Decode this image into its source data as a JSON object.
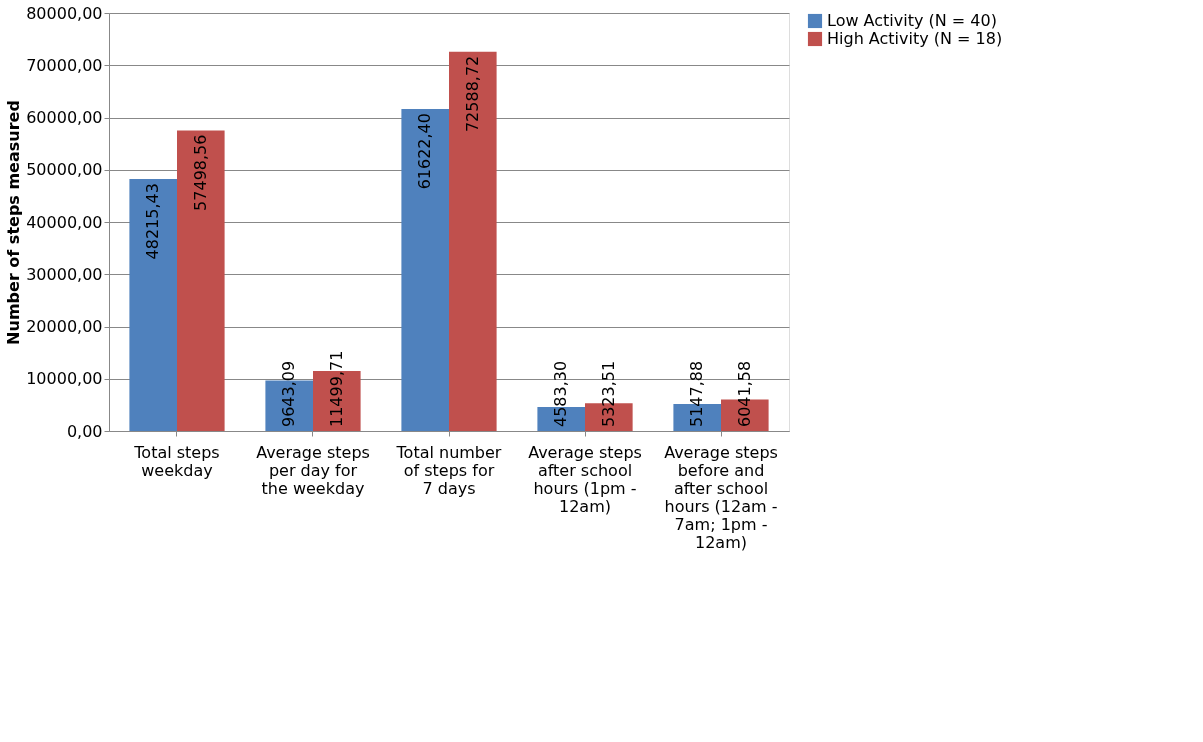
{
  "chart_data": {
    "type": "bar",
    "ylabel": "Number of steps measured",
    "categories": [
      "Total steps weekday",
      "Average steps per day for the weekday",
      "Total number of steps for 7 days",
      "Average steps after school hours (1pm - 12am)",
      "Average steps before and after school hours (12am - 7am; 1pm - 12am)"
    ],
    "series": [
      {
        "name": "Low Activity (N = 40)",
        "color": "#4f81bd",
        "values": [
          48215.43,
          9643.09,
          61622.4,
          4583.3,
          5147.88
        ],
        "value_labels": [
          "48215,43",
          "9643,09",
          "61622,40",
          "4583,30",
          "5147,88"
        ]
      },
      {
        "name": "High Activity (N = 18)",
        "color": "#c0504d",
        "values": [
          57498.56,
          11499.71,
          72588.72,
          5323.51,
          6041.58
        ],
        "value_labels": [
          "57498,56",
          "11499,71",
          "72588,72",
          "5323,51",
          "6041,58"
        ]
      }
    ],
    "ylim": [
      0,
      80000
    ],
    "yticks": [
      {
        "value": 0,
        "label": "0,00"
      },
      {
        "value": 10000,
        "label": "10000,00"
      },
      {
        "value": 20000,
        "label": "20000,00"
      },
      {
        "value": 30000,
        "label": "30000,00"
      },
      {
        "value": 40000,
        "label": "40000,00"
      },
      {
        "value": 50000,
        "label": "50000,00"
      },
      {
        "value": 60000,
        "label": "60000,00"
      },
      {
        "value": 70000,
        "label": "70000,00"
      },
      {
        "value": 80000,
        "label": "80000,00"
      }
    ],
    "grid": "y",
    "legend": "right"
  }
}
